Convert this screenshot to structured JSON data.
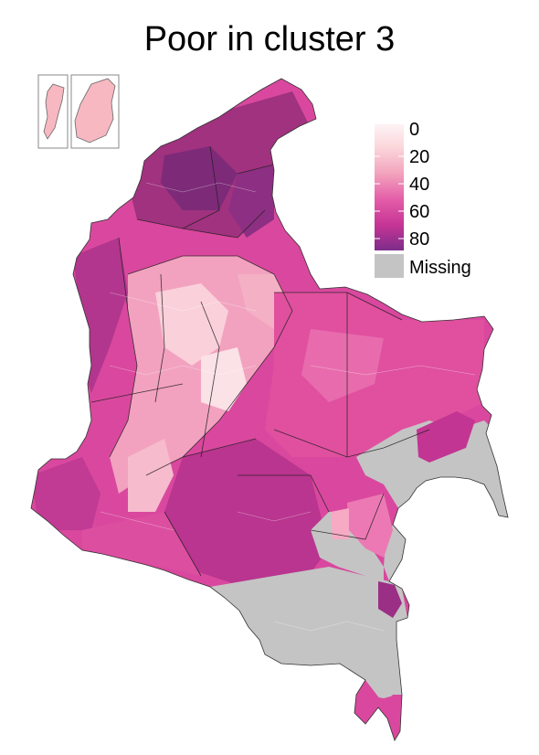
{
  "title": "Poor in cluster 3",
  "legend": {
    "ticks": [
      "0",
      "20",
      "40",
      "60",
      "80"
    ],
    "missing_label": "Missing",
    "gradient_colors": [
      "#fdf3f4",
      "#fbd7dc",
      "#f3a6be",
      "#e45ca8",
      "#c53495",
      "#7c2d8a"
    ],
    "missing_color": "#c4c4c4"
  },
  "map": {
    "region": "Colombia",
    "missing_color": "#c4c4c4",
    "border_color": "#1a1a1a",
    "inset_color": "#f7b8c1"
  }
}
